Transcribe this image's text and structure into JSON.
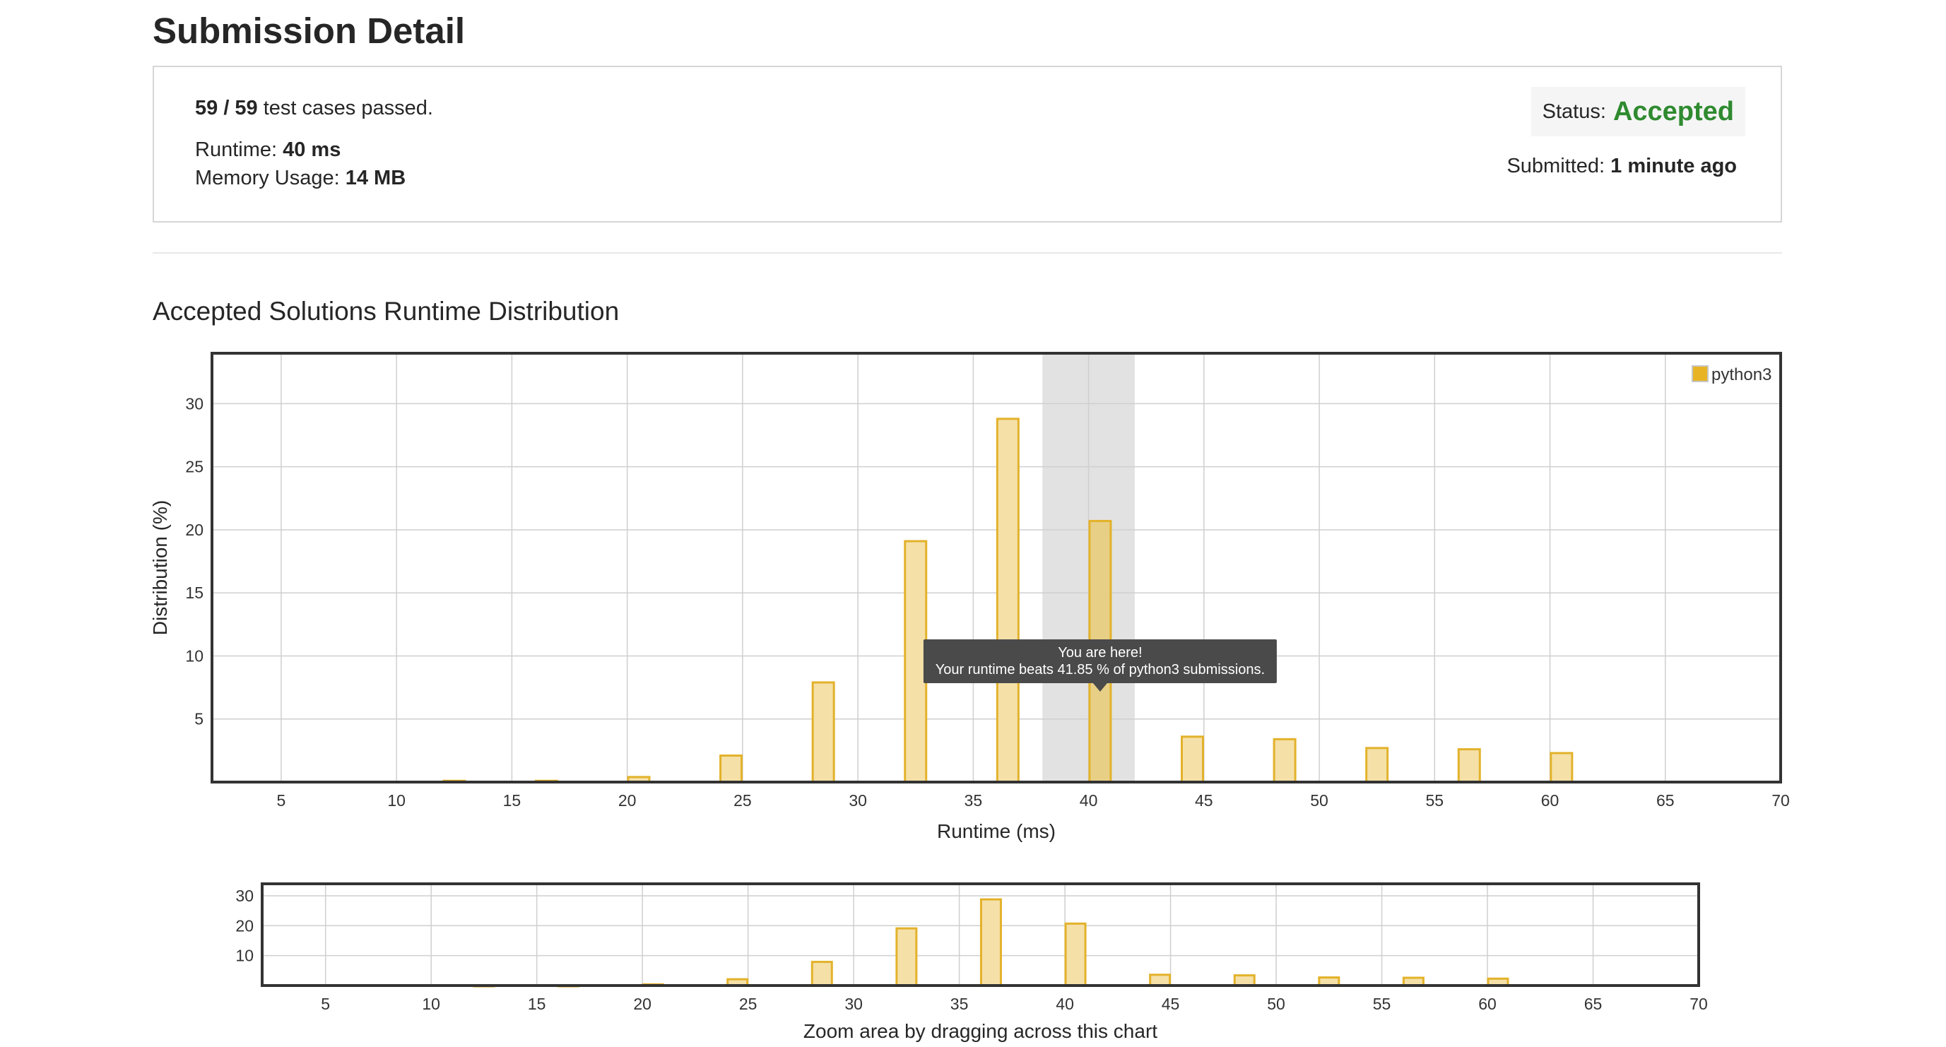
{
  "page": {
    "title": "Submission Detail"
  },
  "summary": {
    "passed": "59 / 59",
    "passed_suffix": " test cases passed.",
    "runtime_label": "Runtime: ",
    "runtime_value": "40 ms",
    "memory_label": "Memory Usage: ",
    "memory_value": "14 MB",
    "status_label": "Status:",
    "status_value": "Accepted",
    "submitted_label": "Submitted: ",
    "submitted_value": "1 minute ago"
  },
  "section": {
    "title": "Accepted Solutions Runtime Distribution"
  },
  "colors": {
    "accent_green": "#2f8a2f",
    "bar_fill": "#f5e0a8",
    "bar_stroke": "#e3b22b",
    "legend_fill": "#e8b425"
  },
  "chart_data": [
    {
      "type": "bar",
      "xlabel": "Runtime (ms)",
      "ylabel": "Distribution (%)",
      "xlim": [
        2,
        70
      ],
      "ylim": [
        0,
        34
      ],
      "xticks": [
        5,
        10,
        15,
        20,
        25,
        30,
        35,
        40,
        45,
        50,
        55,
        60,
        65,
        70
      ],
      "yticks": [
        5,
        10,
        15,
        20,
        25,
        30
      ],
      "grid": true,
      "legend": {
        "position": "top-right",
        "entries": [
          "python3"
        ]
      },
      "series": [
        {
          "name": "python3",
          "x": [
            12.5,
            16.5,
            20.5,
            24.5,
            28.5,
            32.5,
            36.5,
            40.5,
            44.5,
            48.5,
            52.5,
            56.5,
            60.5
          ],
          "values": [
            0.1,
            0.1,
            0.4,
            2.1,
            7.9,
            19.1,
            28.8,
            20.7,
            3.6,
            3.4,
            2.7,
            2.6,
            2.3
          ]
        }
      ],
      "highlight": {
        "x_range": [
          38,
          42
        ],
        "bar_x": 40.5
      },
      "tooltip": {
        "line1": "You are here!",
        "line2": "Your runtime beats 41.85 % of python3 submissions."
      }
    },
    {
      "type": "bar",
      "xlabel": "Zoom area by dragging across this chart",
      "xlim": [
        2,
        70
      ],
      "ylim": [
        0,
        34
      ],
      "xticks": [
        5,
        10,
        15,
        20,
        25,
        30,
        35,
        40,
        45,
        50,
        55,
        60,
        65,
        70
      ],
      "yticks": [
        10,
        20,
        30
      ],
      "grid": true,
      "series": [
        {
          "name": "python3",
          "x": [
            12.5,
            16.5,
            20.5,
            24.5,
            28.5,
            32.5,
            36.5,
            40.5,
            44.5,
            48.5,
            52.5,
            56.5,
            60.5
          ],
          "values": [
            0.1,
            0.1,
            0.4,
            2.1,
            7.9,
            19.1,
            28.8,
            20.7,
            3.6,
            3.4,
            2.7,
            2.6,
            2.3
          ]
        }
      ]
    }
  ]
}
